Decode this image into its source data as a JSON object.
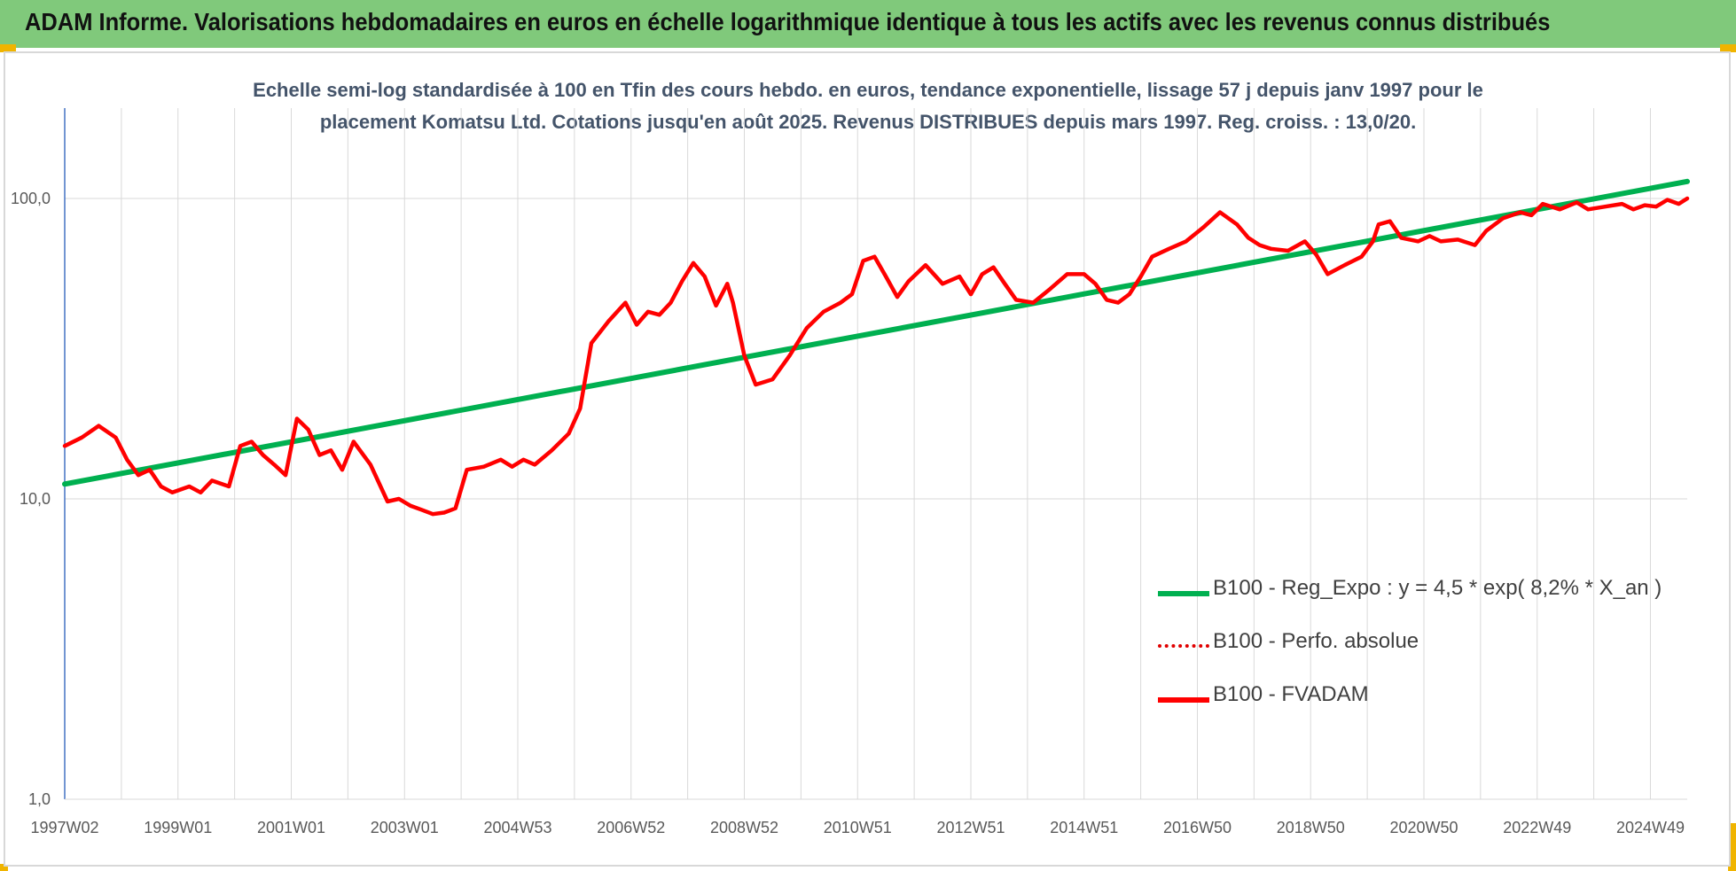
{
  "banner": {
    "title": "ADAM Informe. Valorisations hebdomadaires en euros en échelle logarithmique identique à tous les actifs avec les revenus connus distribués"
  },
  "chart_data": {
    "type": "line",
    "subtitle_lines": [
      "Echelle semi-log standardisée à 100 en Tfin des cours hebdo. en euros, tendance exponentielle, lissage 57 j depuis janv 1997 pour le",
      "placement Komatsu Ltd. Cotations jusqu'en août 2025. Revenus DISTRIBUES depuis mars 1997. Reg. croiss. : 13,0/20."
    ],
    "y_scale": "log",
    "ylim": [
      1,
      200
    ],
    "xlim": [
      1997.0,
      2025.65
    ],
    "grid": true,
    "legend_position": "bottom-right",
    "y_ticks": [
      {
        "value": 1,
        "label": "1,0"
      },
      {
        "value": 10,
        "label": "10,0"
      },
      {
        "value": 100,
        "label": "100,0"
      }
    ],
    "x_ticks": [
      {
        "value": 1997.0,
        "label": "1997W02"
      },
      {
        "value": 1999.0,
        "label": "1999W01"
      },
      {
        "value": 2001.0,
        "label": "2001W01"
      },
      {
        "value": 2003.0,
        "label": "2003W01"
      },
      {
        "value": 2005.0,
        "label": "2004W53"
      },
      {
        "value": 2007.0,
        "label": "2006W52"
      },
      {
        "value": 2009.0,
        "label": "2008W52"
      },
      {
        "value": 2011.0,
        "label": "2010W51"
      },
      {
        "value": 2013.0,
        "label": "2012W51"
      },
      {
        "value": 2015.0,
        "label": "2014W51"
      },
      {
        "value": 2017.0,
        "label": "2016W50"
      },
      {
        "value": 2019.0,
        "label": "2018W50"
      },
      {
        "value": 2021.0,
        "label": "2020W50"
      },
      {
        "value": 2023.0,
        "label": "2022W49"
      },
      {
        "value": 2025.0,
        "label": "2024W49"
      }
    ],
    "series": [
      {
        "name": "B100 - Reg_Expo : y = 4,5 * exp( 8,2% *  X_an )",
        "color": "#00b050",
        "style": "solid",
        "x": [
          1997.0,
          2025.65
        ],
        "y": [
          11.2,
          114
        ]
      },
      {
        "name": "B100 - Perfo. absolue",
        "color": "#e00000",
        "style": "dotted",
        "x": [],
        "y": []
      },
      {
        "name": "B100 - FVADAM",
        "color": "#ff0000",
        "style": "solid",
        "x": [
          1997.0,
          1997.3,
          1997.6,
          1997.9,
          1998.1,
          1998.3,
          1998.5,
          1998.7,
          1998.9,
          1999.2,
          1999.4,
          1999.6,
          1999.9,
          2000.1,
          2000.3,
          2000.5,
          2000.7,
          2000.9,
          2001.1,
          2001.3,
          2001.5,
          2001.7,
          2001.9,
          2002.1,
          2002.4,
          2002.7,
          2002.9,
          2003.1,
          2003.3,
          2003.5,
          2003.7,
          2003.9,
          2004.1,
          2004.4,
          2004.7,
          2004.9,
          2005.1,
          2005.3,
          2005.6,
          2005.9,
          2006.1,
          2006.3,
          2006.6,
          2006.9,
          2007.1,
          2007.3,
          2007.5,
          2007.7,
          2007.9,
          2008.1,
          2008.3,
          2008.5,
          2008.7,
          2008.8,
          2009.0,
          2009.2,
          2009.5,
          2009.8,
          2010.1,
          2010.4,
          2010.7,
          2010.9,
          2011.1,
          2011.3,
          2011.5,
          2011.7,
          2011.9,
          2012.2,
          2012.5,
          2012.8,
          2013.0,
          2013.2,
          2013.4,
          2013.6,
          2013.8,
          2014.1,
          2014.4,
          2014.7,
          2015.0,
          2015.2,
          2015.4,
          2015.6,
          2015.8,
          2016.0,
          2016.2,
          2016.5,
          2016.8,
          2017.1,
          2017.4,
          2017.7,
          2017.9,
          2018.1,
          2018.3,
          2018.6,
          2018.9,
          2019.1,
          2019.3,
          2019.6,
          2019.9,
          2020.1,
          2020.2,
          2020.4,
          2020.6,
          2020.9,
          2021.1,
          2021.3,
          2021.6,
          2021.9,
          2022.1,
          2022.4,
          2022.7,
          2022.9,
          2023.1,
          2023.4,
          2023.7,
          2023.9,
          2024.2,
          2024.5,
          2024.7,
          2024.9,
          2025.1,
          2025.3,
          2025.5,
          2025.65
        ],
        "y": [
          15,
          16,
          17.5,
          16,
          13.5,
          12,
          12.5,
          11,
          10.5,
          11,
          10.5,
          11.5,
          11,
          15,
          15.5,
          14,
          13,
          12,
          18.5,
          17,
          14,
          14.5,
          12.5,
          15.5,
          13,
          9.8,
          10,
          9.5,
          9.2,
          8.9,
          9.0,
          9.3,
          12.5,
          12.8,
          13.5,
          12.8,
          13.5,
          13,
          14.5,
          16.5,
          20,
          33,
          39,
          45,
          38,
          42,
          41,
          45,
          53,
          61,
          55,
          44,
          52,
          45,
          30,
          24,
          25,
          30,
          37,
          42,
          45,
          48,
          62,
          64,
          55,
          47,
          53,
          60,
          52,
          55,
          48,
          56,
          59,
          52,
          46,
          45,
          50,
          56,
          56,
          52,
          46,
          45,
          48,
          55,
          64,
          68,
          72,
          80,
          90,
          82,
          74,
          70,
          68,
          67,
          72,
          65,
          56,
          60,
          64,
          72,
          82,
          84,
          74,
          72,
          75,
          72,
          73,
          70,
          78,
          86,
          90,
          88,
          96,
          92,
          97,
          92,
          94,
          96,
          92,
          95,
          94,
          99,
          96,
          100
        ]
      }
    ]
  }
}
